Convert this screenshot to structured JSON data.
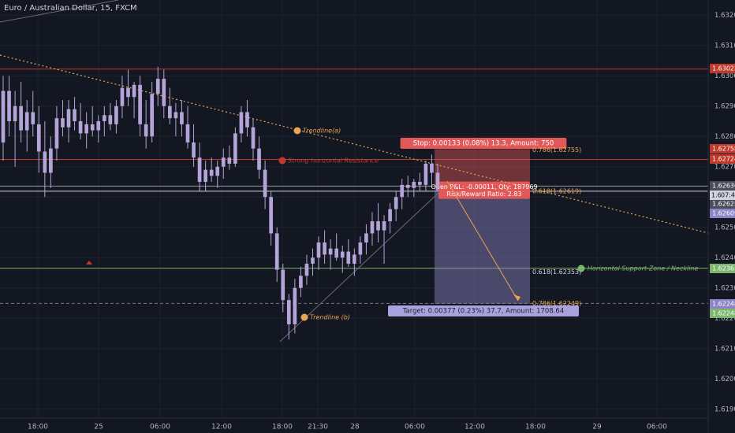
{
  "chart_title": "Euro / Australian Dollar, 15, FXCM",
  "colors": {
    "background": "#131722",
    "candle": "#b5a4d8",
    "grid": "#1e222d",
    "text": "#b2b5be",
    "resistance": "#c0392b",
    "support": "#7cb56e",
    "trendline": "#e8a555",
    "stop": "#e05858",
    "target": "#8d84c6"
  },
  "chart_data": {
    "type": "candlestick",
    "title": "Euro / Australian Dollar, 15, FXCM",
    "ylim": [
      1.6185,
      1.6325
    ],
    "y_ticks": [
      "1.63200",
      "1.63100",
      "1.63000",
      "1.62900",
      "1.62800",
      "1.62700",
      "1.62600",
      "1.62500",
      "1.62400",
      "1.62300",
      "1.62200",
      "1.62100",
      "1.62000",
      "1.61900"
    ],
    "x_ticks": [
      "18:00",
      "25",
      "06:00",
      "12:00",
      "18:00",
      "21:30",
      "28",
      "06:00",
      "12:00",
      "18:00",
      "29",
      "06:00"
    ],
    "grid": true,
    "price_badges": [
      {
        "value": "1.63022",
        "color": "#c0392b"
      },
      {
        "value": "1.62758",
        "color": "#c0392b"
      },
      {
        "value": "1.62724",
        "color": "#c0392b"
      },
      {
        "value": "1.62636",
        "color": "#4a4e5a"
      },
      {
        "value": "1.62625",
        "color": "#4a4e5a"
      },
      {
        "value": "1.62609",
        "color": "#8d84c6"
      },
      {
        "value": "1.62365",
        "color": "#7cb56e"
      },
      {
        "value": "1.62248",
        "color": "#8d84c6"
      },
      {
        "value": "1.62248",
        "color": "#7cb56e"
      }
    ],
    "countdown": "07:41",
    "countdown_price": "1.6",
    "horizontal_lines": [
      {
        "price": 1.63022,
        "color": "#c0392b",
        "style": "solid"
      },
      {
        "price": 1.62724,
        "color": "#c0392b",
        "style": "solid"
      },
      {
        "price": 1.62365,
        "color": "#7cb56e",
        "style": "solid"
      },
      {
        "price": 1.62636,
        "color": "#9598a1",
        "style": "solid"
      },
      {
        "price": 1.62619,
        "color": "#d1d4dc",
        "style": "solid"
      },
      {
        "price": 1.62249,
        "color": "#787b86",
        "style": "dashed"
      }
    ],
    "fib_labels": [
      "0.786(1.62755)",
      "0.618(1.62619)",
      "0.618(1.62353)",
      "0.786(1.62249)"
    ],
    "annotations": [
      {
        "text": "Trendline(a)",
        "color": "#e8a555"
      },
      {
        "text": "Strong horizontal Resistance",
        "color": "#c0392b"
      },
      {
        "text": "Trendline (b)",
        "color": "#e8a555"
      },
      {
        "text": "Horizontal Support-Zone / Neckline",
        "color": "#7cb56e"
      }
    ],
    "position": {
      "stop_label": "Stop: 0.00133 (0.08%) 13.3, Amount: 750",
      "pnl_line1": "Open P&L: -0.00011, Qty: 187969",
      "pnl_line2": "Risk/Reward Ratio: 2.83",
      "target_label": "Target: 0.00377 (0.23%) 37.7, Amount: 1708.64",
      "entry": 1.62625,
      "stop": 1.62758,
      "target": 1.62248
    },
    "candles": [
      {
        "o": 1.6278,
        "h": 1.63,
        "l": 1.6272,
        "c": 1.6295
      },
      {
        "o": 1.6295,
        "h": 1.63,
        "l": 1.628,
        "c": 1.6285
      },
      {
        "o": 1.6285,
        "h": 1.6295,
        "l": 1.627,
        "c": 1.629
      },
      {
        "o": 1.629,
        "h": 1.6298,
        "l": 1.6278,
        "c": 1.6282
      },
      {
        "o": 1.6282,
        "h": 1.6292,
        "l": 1.6275,
        "c": 1.6288
      },
      {
        "o": 1.6288,
        "h": 1.6295,
        "l": 1.628,
        "c": 1.6284
      },
      {
        "o": 1.6284,
        "h": 1.629,
        "l": 1.6268,
        "c": 1.6275
      },
      {
        "o": 1.6275,
        "h": 1.6285,
        "l": 1.626,
        "c": 1.6268
      },
      {
        "o": 1.6268,
        "h": 1.628,
        "l": 1.6263,
        "c": 1.6276
      },
      {
        "o": 1.6276,
        "h": 1.629,
        "l": 1.6272,
        "c": 1.6286
      },
      {
        "o": 1.6286,
        "h": 1.6292,
        "l": 1.628,
        "c": 1.6283
      },
      {
        "o": 1.6283,
        "h": 1.6292,
        "l": 1.6278,
        "c": 1.6289
      },
      {
        "o": 1.6289,
        "h": 1.6293,
        "l": 1.6282,
        "c": 1.6285
      },
      {
        "o": 1.6285,
        "h": 1.6291,
        "l": 1.6279,
        "c": 1.6281
      },
      {
        "o": 1.6281,
        "h": 1.6288,
        "l": 1.6276,
        "c": 1.6284
      },
      {
        "o": 1.6284,
        "h": 1.629,
        "l": 1.628,
        "c": 1.6282
      },
      {
        "o": 1.6282,
        "h": 1.6287,
        "l": 1.6278,
        "c": 1.6285
      },
      {
        "o": 1.6285,
        "h": 1.629,
        "l": 1.628,
        "c": 1.6287
      },
      {
        "o": 1.6287,
        "h": 1.6291,
        "l": 1.6282,
        "c": 1.6284
      },
      {
        "o": 1.6284,
        "h": 1.6292,
        "l": 1.6281,
        "c": 1.629
      },
      {
        "o": 1.629,
        "h": 1.63,
        "l": 1.6286,
        "c": 1.6296
      },
      {
        "o": 1.6296,
        "h": 1.6302,
        "l": 1.629,
        "c": 1.6293
      },
      {
        "o": 1.6293,
        "h": 1.6298,
        "l": 1.6286,
        "c": 1.6297
      },
      {
        "o": 1.6297,
        "h": 1.63,
        "l": 1.628,
        "c": 1.6284
      },
      {
        "o": 1.6284,
        "h": 1.6292,
        "l": 1.6276,
        "c": 1.628
      },
      {
        "o": 1.628,
        "h": 1.6298,
        "l": 1.6278,
        "c": 1.6294
      },
      {
        "o": 1.6294,
        "h": 1.6303,
        "l": 1.629,
        "c": 1.6299
      },
      {
        "o": 1.6299,
        "h": 1.6302,
        "l": 1.6286,
        "c": 1.629
      },
      {
        "o": 1.629,
        "h": 1.6296,
        "l": 1.6284,
        "c": 1.6286
      },
      {
        "o": 1.6286,
        "h": 1.6291,
        "l": 1.628,
        "c": 1.6288
      },
      {
        "o": 1.6288,
        "h": 1.6292,
        "l": 1.628,
        "c": 1.6284
      },
      {
        "o": 1.6284,
        "h": 1.629,
        "l": 1.6276,
        "c": 1.6278
      },
      {
        "o": 1.6278,
        "h": 1.6284,
        "l": 1.627,
        "c": 1.6273
      },
      {
        "o": 1.6273,
        "h": 1.6278,
        "l": 1.6262,
        "c": 1.6265
      },
      {
        "o": 1.6265,
        "h": 1.6272,
        "l": 1.6262,
        "c": 1.6269
      },
      {
        "o": 1.6269,
        "h": 1.6273,
        "l": 1.6265,
        "c": 1.6267
      },
      {
        "o": 1.6267,
        "h": 1.6272,
        "l": 1.6263,
        "c": 1.627
      },
      {
        "o": 1.627,
        "h": 1.6276,
        "l": 1.6266,
        "c": 1.6273
      },
      {
        "o": 1.6273,
        "h": 1.6277,
        "l": 1.6269,
        "c": 1.6271
      },
      {
        "o": 1.6271,
        "h": 1.6283,
        "l": 1.627,
        "c": 1.6281
      },
      {
        "o": 1.6281,
        "h": 1.629,
        "l": 1.6278,
        "c": 1.6288
      },
      {
        "o": 1.6288,
        "h": 1.6292,
        "l": 1.628,
        "c": 1.6283
      },
      {
        "o": 1.6283,
        "h": 1.6286,
        "l": 1.6272,
        "c": 1.6276
      },
      {
        "o": 1.6276,
        "h": 1.628,
        "l": 1.6266,
        "c": 1.6269
      },
      {
        "o": 1.6269,
        "h": 1.6272,
        "l": 1.6256,
        "c": 1.626
      },
      {
        "o": 1.626,
        "h": 1.6262,
        "l": 1.6244,
        "c": 1.6248
      },
      {
        "o": 1.6248,
        "h": 1.625,
        "l": 1.6232,
        "c": 1.6236
      },
      {
        "o": 1.6236,
        "h": 1.6238,
        "l": 1.6222,
        "c": 1.6226
      },
      {
        "o": 1.6226,
        "h": 1.6228,
        "l": 1.6213,
        "c": 1.6218
      },
      {
        "o": 1.6218,
        "h": 1.6233,
        "l": 1.6215,
        "c": 1.623
      },
      {
        "o": 1.623,
        "h": 1.6237,
        "l": 1.6227,
        "c": 1.6234
      },
      {
        "o": 1.6234,
        "h": 1.6241,
        "l": 1.6231,
        "c": 1.6238
      },
      {
        "o": 1.6238,
        "h": 1.6243,
        "l": 1.6234,
        "c": 1.624
      },
      {
        "o": 1.624,
        "h": 1.6247,
        "l": 1.6236,
        "c": 1.6245
      },
      {
        "o": 1.6245,
        "h": 1.6249,
        "l": 1.6238,
        "c": 1.6241
      },
      {
        "o": 1.6241,
        "h": 1.6246,
        "l": 1.6236,
        "c": 1.6243
      },
      {
        "o": 1.6243,
        "h": 1.6248,
        "l": 1.6239,
        "c": 1.624
      },
      {
        "o": 1.624,
        "h": 1.6244,
        "l": 1.6235,
        "c": 1.6242
      },
      {
        "o": 1.6242,
        "h": 1.6246,
        "l": 1.6237,
        "c": 1.6238
      },
      {
        "o": 1.6238,
        "h": 1.6243,
        "l": 1.6234,
        "c": 1.6241
      },
      {
        "o": 1.6241,
        "h": 1.6247,
        "l": 1.6238,
        "c": 1.6245
      },
      {
        "o": 1.6245,
        "h": 1.6251,
        "l": 1.6241,
        "c": 1.6248
      },
      {
        "o": 1.6248,
        "h": 1.6255,
        "l": 1.6244,
        "c": 1.6252
      },
      {
        "o": 1.6252,
        "h": 1.6258,
        "l": 1.6245,
        "c": 1.6249
      },
      {
        "o": 1.6249,
        "h": 1.6254,
        "l": 1.6238,
        "c": 1.6252
      },
      {
        "o": 1.6252,
        "h": 1.6258,
        "l": 1.6248,
        "c": 1.6256
      },
      {
        "o": 1.6256,
        "h": 1.6262,
        "l": 1.6252,
        "c": 1.626
      },
      {
        "o": 1.626,
        "h": 1.6266,
        "l": 1.6256,
        "c": 1.6264
      },
      {
        "o": 1.6264,
        "h": 1.6267,
        "l": 1.626,
        "c": 1.6263
      },
      {
        "o": 1.6263,
        "h": 1.6266,
        "l": 1.626,
        "c": 1.6265
      },
      {
        "o": 1.6265,
        "h": 1.6268,
        "l": 1.6262,
        "c": 1.6264
      },
      {
        "o": 1.6264,
        "h": 1.6272,
        "l": 1.6262,
        "c": 1.6271
      },
      {
        "o": 1.6271,
        "h": 1.6274,
        "l": 1.6264,
        "c": 1.6268
      },
      {
        "o": 1.6268,
        "h": 1.6271,
        "l": 1.6262,
        "c": 1.6263
      }
    ]
  }
}
